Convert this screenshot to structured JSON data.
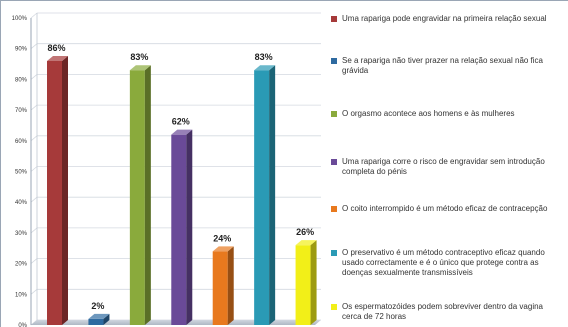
{
  "chart_data": {
    "type": "bar",
    "title": "",
    "xlabel": "",
    "ylabel": "",
    "ylim": [
      0,
      100
    ],
    "yticks": [
      "0%",
      "10%",
      "20%",
      "30%",
      "40%",
      "50%",
      "60%",
      "70%",
      "80%",
      "90%",
      "100%"
    ],
    "grid": true,
    "legend_position": "right",
    "categories": [
      "Uma rapariga pode engravidar na primeira relação sexual",
      "Se a rapariga não tiver prazer na relação sexual não fica grávida",
      "O orgasmo acontece aos homens e às mulheres",
      "Uma rapariga corre o risco de engravidar sem introdução completa do pénis",
      "O coito interrompido é um método eficaz de contracepção",
      "O preservativo é um método contraceptivo eficaz quando usado correctamente e é o único que protege contra as doenças sexualmente transmissíveis",
      "Os espermatozóides podem sobreviver dentro da vagina cerca de 72 horas"
    ],
    "values": [
      86,
      2,
      83,
      62,
      24,
      83,
      26
    ],
    "value_labels": [
      "86%",
      "2%",
      "83%",
      "62%",
      "24%",
      "83%",
      "26%"
    ],
    "colors": [
      "#a63a3a",
      "#2e6aa0",
      "#8aaa3c",
      "#6a4a98",
      "#e8791e",
      "#2a9ab5",
      "#f2ef18"
    ]
  }
}
